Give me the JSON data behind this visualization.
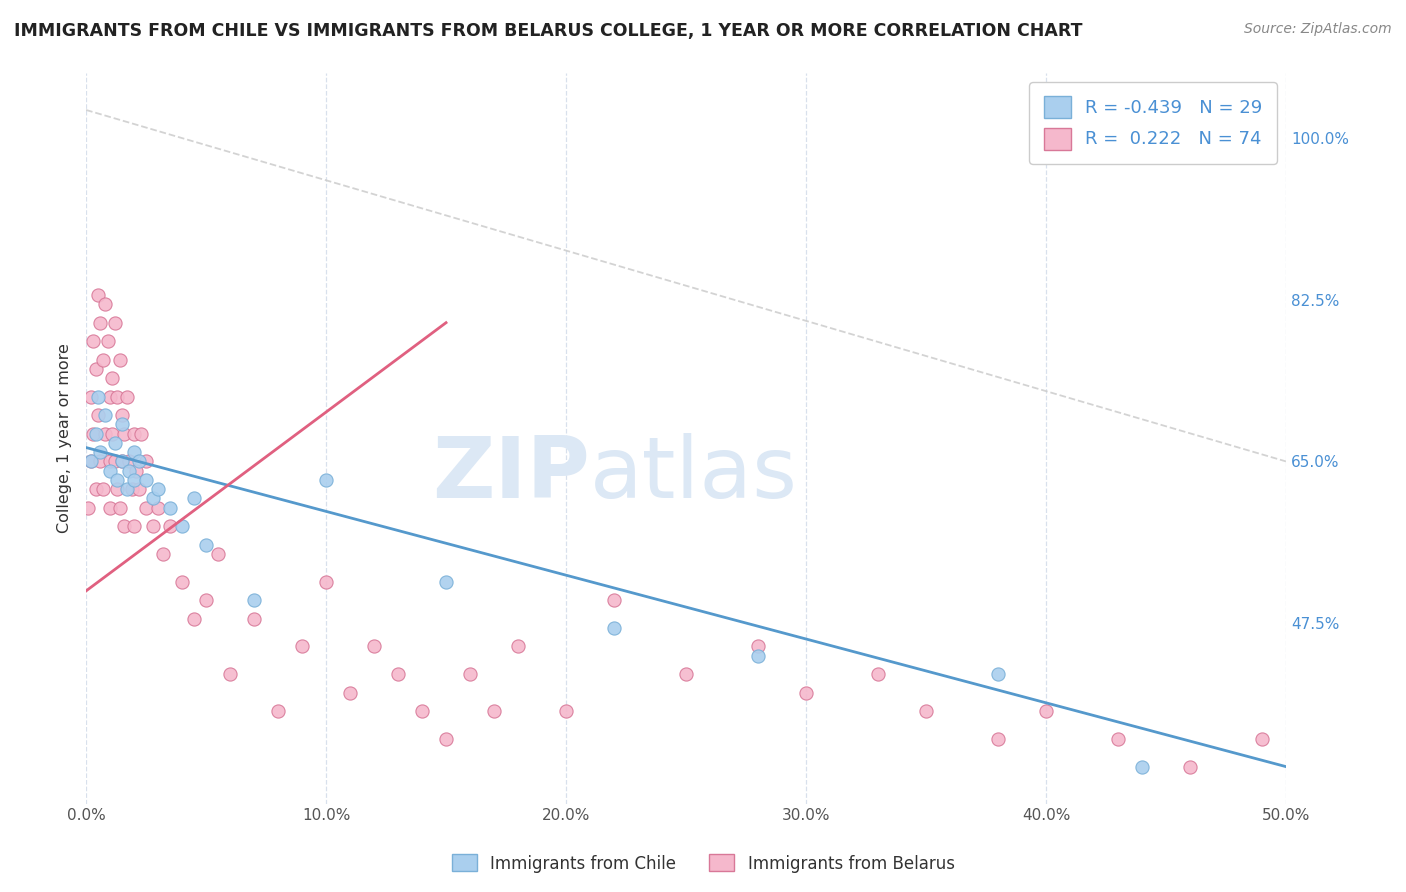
{
  "title": "IMMIGRANTS FROM CHILE VS IMMIGRANTS FROM BELARUS COLLEGE, 1 YEAR OR MORE CORRELATION CHART",
  "source_text": "Source: ZipAtlas.com",
  "ylabel": "College, 1 year or more",
  "xlim": [
    0.0,
    50.0
  ],
  "ylim": [
    28.0,
    107.0
  ],
  "xticks": [
    0.0,
    10.0,
    20.0,
    30.0,
    40.0,
    50.0
  ],
  "yticks_right": [
    47.5,
    65.0,
    82.5,
    100.0
  ],
  "ytick_labels_right": [
    "47.5%",
    "65.0%",
    "82.5%",
    "100.0%"
  ],
  "chile_color": "#aacfee",
  "chile_edge_color": "#7ab0d8",
  "belarus_color": "#f5b8cc",
  "belarus_edge_color": "#d87898",
  "chile_R": -0.439,
  "chile_N": 29,
  "belarus_R": 0.222,
  "belarus_N": 74,
  "chile_line_color": "#5599cc",
  "belarus_line_color": "#e06080",
  "gray_dash_color": "#cccccc",
  "background_color": "#ffffff",
  "grid_color": "#d8e0ec",
  "watermark_zip": "ZIP",
  "watermark_atlas": "atlas",
  "watermark_color": "#dce8f5",
  "legend_label_chile": "Immigrants from Chile",
  "legend_label_belarus": "Immigrants from Belarus",
  "chile_scatter_x": [
    0.2,
    0.4,
    0.5,
    0.6,
    0.8,
    1.0,
    1.2,
    1.3,
    1.5,
    1.5,
    1.7,
    1.8,
    2.0,
    2.0,
    2.2,
    2.5,
    2.8,
    3.0,
    3.5,
    4.0,
    4.5,
    5.0,
    7.0,
    10.0,
    15.0,
    22.0,
    28.0,
    38.0,
    44.0
  ],
  "chile_scatter_y": [
    65.0,
    68.0,
    72.0,
    66.0,
    70.0,
    64.0,
    67.0,
    63.0,
    65.0,
    69.0,
    62.0,
    64.0,
    63.0,
    66.0,
    65.0,
    63.0,
    61.0,
    62.0,
    60.0,
    58.0,
    61.0,
    56.0,
    50.0,
    63.0,
    52.0,
    47.0,
    44.0,
    42.0,
    32.0
  ],
  "belarus_scatter_x": [
    0.1,
    0.2,
    0.2,
    0.3,
    0.3,
    0.4,
    0.4,
    0.5,
    0.5,
    0.6,
    0.6,
    0.7,
    0.7,
    0.8,
    0.8,
    0.9,
    1.0,
    1.0,
    1.0,
    1.1,
    1.1,
    1.2,
    1.2,
    1.3,
    1.3,
    1.4,
    1.4,
    1.5,
    1.5,
    1.6,
    1.6,
    1.7,
    1.8,
    1.9,
    2.0,
    2.0,
    2.1,
    2.2,
    2.3,
    2.5,
    2.5,
    2.8,
    3.0,
    3.2,
    3.5,
    4.0,
    4.5,
    5.0,
    5.5,
    6.0,
    7.0,
    8.0,
    9.0,
    10.0,
    11.0,
    12.0,
    13.0,
    14.0,
    15.0,
    16.0,
    17.0,
    18.0,
    20.0,
    22.0,
    25.0,
    28.0,
    30.0,
    33.0,
    35.0,
    38.0,
    40.0,
    43.0,
    46.0,
    49.0
  ],
  "belarus_scatter_y": [
    60.0,
    72.0,
    65.0,
    78.0,
    68.0,
    75.0,
    62.0,
    83.0,
    70.0,
    80.0,
    65.0,
    76.0,
    62.0,
    82.0,
    68.0,
    78.0,
    72.0,
    65.0,
    60.0,
    74.0,
    68.0,
    80.0,
    65.0,
    72.0,
    62.0,
    76.0,
    60.0,
    70.0,
    65.0,
    68.0,
    58.0,
    72.0,
    65.0,
    62.0,
    68.0,
    58.0,
    64.0,
    62.0,
    68.0,
    60.0,
    65.0,
    58.0,
    60.0,
    55.0,
    58.0,
    52.0,
    48.0,
    50.0,
    55.0,
    42.0,
    48.0,
    38.0,
    45.0,
    52.0,
    40.0,
    45.0,
    42.0,
    38.0,
    35.0,
    42.0,
    38.0,
    45.0,
    38.0,
    50.0,
    42.0,
    45.0,
    40.0,
    42.0,
    38.0,
    35.0,
    38.0,
    35.0,
    32.0,
    35.0
  ],
  "chile_line_x0": 0.0,
  "chile_line_y0": 66.5,
  "chile_line_x1": 50.0,
  "chile_line_y1": 32.0,
  "belarus_line_x0": 0.0,
  "belarus_line_y0": 51.0,
  "belarus_line_x1": 15.0,
  "belarus_line_y1": 80.0,
  "gray_line_x0": 0.0,
  "gray_line_y0": 103.0,
  "gray_line_x1": 50.0,
  "gray_line_y1": 65.0
}
